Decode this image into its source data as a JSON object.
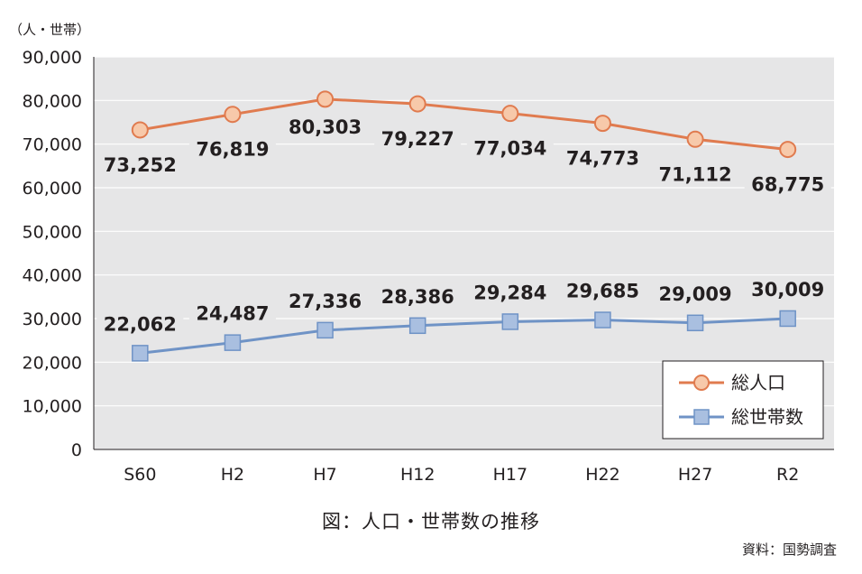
{
  "unit_label": "（人・世帯）",
  "caption": "図：人口・世帯数の推移",
  "source": "資料：国勢調査",
  "colors": {
    "plot_bg": "#e6e6e7",
    "gridline": "#ffffff",
    "population": "#e07b4f",
    "population_fill": "#f7c9aa",
    "households": "#6f93c6",
    "households_fill": "#a9bfe0"
  },
  "chart_data": {
    "type": "line",
    "categories": [
      "S60",
      "H2",
      "H7",
      "H12",
      "H17",
      "H22",
      "H27",
      "R2"
    ],
    "ylim": [
      0,
      90000
    ],
    "yticks": [
      0,
      10000,
      20000,
      30000,
      40000,
      50000,
      60000,
      70000,
      80000,
      90000
    ],
    "ytick_labels": [
      "0",
      "10,000",
      "20,000",
      "30,000",
      "40,000",
      "50,000",
      "60,000",
      "70,000",
      "80,000",
      "90,000"
    ],
    "grid": true,
    "legend_position": "bottom-right",
    "series": [
      {
        "name": "総人口",
        "marker": "circle",
        "values": [
          73252,
          76819,
          80303,
          79227,
          77034,
          74773,
          71112,
          68775
        ],
        "labels": [
          "73,252",
          "76,819",
          "80,303",
          "79,227",
          "77,034",
          "74,773",
          "71,112",
          "68,775"
        ]
      },
      {
        "name": "総世帯数",
        "marker": "square",
        "values": [
          22062,
          24487,
          27336,
          28386,
          29284,
          29685,
          29009,
          30009
        ],
        "labels": [
          "22,062",
          "24,487",
          "27,336",
          "28,386",
          "29,284",
          "29,685",
          "29,009",
          "30,009"
        ]
      }
    ]
  }
}
